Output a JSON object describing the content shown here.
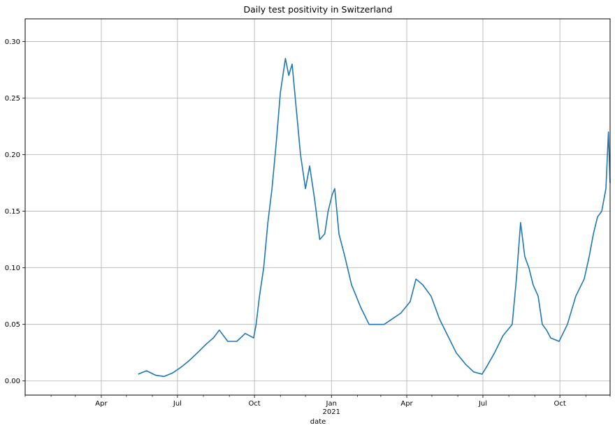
{
  "chart_data": {
    "type": "line",
    "title": "Daily test positivity in Switzerland",
    "xlabel": "date",
    "ylabel": "",
    "x_range": [
      "2020-01-01",
      "2021-11-30"
    ],
    "ylim": [
      -0.0125,
      0.32
    ],
    "grid": true,
    "legend": "none",
    "line_color": "#1f77b4",
    "x_ticks": [
      {
        "date": "2020-04-01",
        "label": "Apr"
      },
      {
        "date": "2020-07-01",
        "label": "Jul"
      },
      {
        "date": "2020-10-01",
        "label": "Oct"
      },
      {
        "date": "2021-01-01",
        "label": "Jan",
        "sublabel": "2021"
      },
      {
        "date": "2021-04-01",
        "label": "Apr"
      },
      {
        "date": "2021-07-01",
        "label": "Jul"
      },
      {
        "date": "2021-10-01",
        "label": "Oct"
      }
    ],
    "x_minor_ticks": [
      "2020-01-01",
      "2020-02-01",
      "2020-03-01",
      "2020-05-01",
      "2020-06-01",
      "2020-08-01",
      "2020-09-01",
      "2020-11-01",
      "2020-12-01",
      "2021-02-01",
      "2021-03-01",
      "2021-05-01",
      "2021-06-01",
      "2021-08-01",
      "2021-09-01",
      "2021-11-01",
      "2021-11-30"
    ],
    "y_ticks": [
      0.0,
      0.05,
      0.1,
      0.15,
      0.2,
      0.25,
      0.3
    ],
    "y_tick_labels": [
      "0.00",
      "0.05",
      "0.10",
      "0.15",
      "0.20",
      "0.25",
      "0.30"
    ],
    "x": [
      "2020-05-15",
      "2020-05-25",
      "2020-06-05",
      "2020-06-15",
      "2020-06-25",
      "2020-07-05",
      "2020-07-15",
      "2020-07-25",
      "2020-08-05",
      "2020-08-13",
      "2020-08-20",
      "2020-08-30",
      "2020-09-10",
      "2020-09-20",
      "2020-09-30",
      "2020-10-03",
      "2020-10-07",
      "2020-10-12",
      "2020-10-17",
      "2020-10-22",
      "2020-10-27",
      "2020-11-01",
      "2020-11-04",
      "2020-11-07",
      "2020-11-11",
      "2020-11-15",
      "2020-11-20",
      "2020-11-25",
      "2020-12-01",
      "2020-12-06",
      "2020-12-12",
      "2020-12-18",
      "2020-12-24",
      "2020-12-28",
      "2021-01-02",
      "2021-01-05",
      "2021-01-10",
      "2021-01-17",
      "2021-01-25",
      "2021-02-05",
      "2021-02-15",
      "2021-02-25",
      "2021-03-05",
      "2021-03-15",
      "2021-03-25",
      "2021-04-05",
      "2021-04-12",
      "2021-04-20",
      "2021-04-30",
      "2021-05-10",
      "2021-05-20",
      "2021-05-30",
      "2021-06-10",
      "2021-06-20",
      "2021-06-30",
      "2021-07-05",
      "2021-07-15",
      "2021-07-25",
      "2021-08-05",
      "2021-08-10",
      "2021-08-15",
      "2021-08-20",
      "2021-08-25",
      "2021-08-30",
      "2021-09-05",
      "2021-09-10",
      "2021-09-15",
      "2021-09-20",
      "2021-09-30",
      "2021-10-10",
      "2021-10-20",
      "2021-10-30",
      "2021-11-05",
      "2021-11-10",
      "2021-11-15",
      "2021-11-20",
      "2021-11-25",
      "2021-11-28",
      "2021-11-30"
    ],
    "y": [
      0.006,
      0.009,
      0.005,
      0.004,
      0.007,
      0.012,
      0.018,
      0.025,
      0.033,
      0.038,
      0.045,
      0.035,
      0.035,
      0.042,
      0.038,
      0.05,
      0.075,
      0.1,
      0.14,
      0.17,
      0.21,
      0.255,
      0.27,
      0.285,
      0.27,
      0.28,
      0.24,
      0.2,
      0.17,
      0.19,
      0.16,
      0.125,
      0.13,
      0.15,
      0.165,
      0.17,
      0.13,
      0.11,
      0.085,
      0.065,
      0.05,
      0.05,
      0.05,
      0.055,
      0.06,
      0.07,
      0.09,
      0.085,
      0.075,
      0.055,
      0.04,
      0.025,
      0.015,
      0.008,
      0.006,
      0.012,
      0.025,
      0.04,
      0.05,
      0.09,
      0.14,
      0.11,
      0.1,
      0.085,
      0.075,
      0.05,
      0.045,
      0.038,
      0.035,
      0.05,
      0.075,
      0.09,
      0.11,
      0.13,
      0.145,
      0.15,
      0.17,
      0.22,
      0.175
    ]
  }
}
